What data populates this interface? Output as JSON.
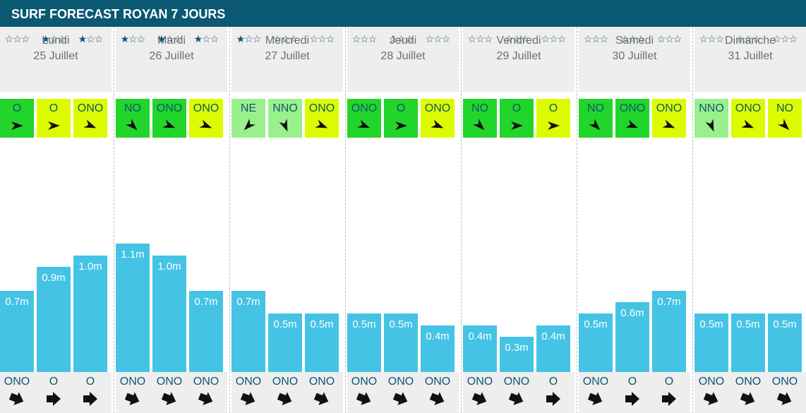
{
  "title": "SURF FORECAST ROYAN 7 JOURS",
  "colors": {
    "header_bg": "#0b5872",
    "wave_bar": "#45c3e4",
    "wind_green": "#22d52a",
    "wind_lightgreen": "#99f08d",
    "wind_yellow": "#dcfb00",
    "text_dark": "#0b5872",
    "panel_gray": "#eeeeee"
  },
  "days": [
    {
      "name": "Lundi",
      "date": "25 Juillet",
      "slots": [
        {
          "stars": 0,
          "wind": {
            "dir": "O",
            "angle": 90,
            "color": "green"
          },
          "height": 0.7,
          "height_label": "0.7m",
          "swell": {
            "dir": "ONO",
            "angle": 112
          }
        },
        {
          "stars": 1,
          "wind": {
            "dir": "O",
            "angle": 90,
            "color": "yellow"
          },
          "height": 0.9,
          "height_label": "0.9m",
          "swell": {
            "dir": "O",
            "angle": 90
          }
        },
        {
          "stars": 1,
          "wind": {
            "dir": "ONO",
            "angle": 112,
            "color": "yellow"
          },
          "height": 1.0,
          "height_label": "1.0m",
          "swell": {
            "dir": "O",
            "angle": 90
          }
        }
      ]
    },
    {
      "name": "Mardi",
      "date": "26 Juillet",
      "slots": [
        {
          "stars": 1,
          "wind": {
            "dir": "NO",
            "angle": 135,
            "color": "green"
          },
          "height": 1.1,
          "height_label": "1.1m",
          "swell": {
            "dir": "ONO",
            "angle": 112
          }
        },
        {
          "stars": 1,
          "wind": {
            "dir": "ONO",
            "angle": 112,
            "color": "green"
          },
          "height": 1.0,
          "height_label": "1.0m",
          "swell": {
            "dir": "ONO",
            "angle": 112
          }
        },
        {
          "stars": 1,
          "wind": {
            "dir": "ONO",
            "angle": 112,
            "color": "yellow"
          },
          "height": 0.7,
          "height_label": "0.7m",
          "swell": {
            "dir": "ONO",
            "angle": 112
          }
        }
      ]
    },
    {
      "name": "Mercredi",
      "date": "27 Juillet",
      "slots": [
        {
          "stars": 1,
          "wind": {
            "dir": "NE",
            "angle": 225,
            "color": "lightgreen"
          },
          "height": 0.7,
          "height_label": "0.7m",
          "swell": {
            "dir": "ONO",
            "angle": 112
          }
        },
        {
          "stars": 0,
          "wind": {
            "dir": "NNO",
            "angle": 158,
            "color": "lightgreen"
          },
          "height": 0.5,
          "height_label": "0.5m",
          "swell": {
            "dir": "ONO",
            "angle": 112
          }
        },
        {
          "stars": 0,
          "wind": {
            "dir": "ONO",
            "angle": 112,
            "color": "yellow"
          },
          "height": 0.5,
          "height_label": "0.5m",
          "swell": {
            "dir": "ONO",
            "angle": 112
          }
        }
      ]
    },
    {
      "name": "Jeudi",
      "date": "28 Juillet",
      "slots": [
        {
          "stars": 0,
          "wind": {
            "dir": "ONO",
            "angle": 112,
            "color": "green"
          },
          "height": 0.5,
          "height_label": "0.5m",
          "swell": {
            "dir": "ONO",
            "angle": 112
          }
        },
        {
          "stars": 0,
          "wind": {
            "dir": "O",
            "angle": 90,
            "color": "green"
          },
          "height": 0.5,
          "height_label": "0.5m",
          "swell": {
            "dir": "ONO",
            "angle": 112
          }
        },
        {
          "stars": 0,
          "wind": {
            "dir": "ONO",
            "angle": 112,
            "color": "yellow"
          },
          "height": 0.4,
          "height_label": "0.4m",
          "swell": {
            "dir": "ONO",
            "angle": 112
          }
        }
      ]
    },
    {
      "name": "Vendredi",
      "date": "29 Juillet",
      "slots": [
        {
          "stars": 0,
          "wind": {
            "dir": "NO",
            "angle": 135,
            "color": "green"
          },
          "height": 0.4,
          "height_label": "0.4m",
          "swell": {
            "dir": "ONO",
            "angle": 112
          }
        },
        {
          "stars": 0,
          "wind": {
            "dir": "O",
            "angle": 90,
            "color": "green"
          },
          "height": 0.3,
          "height_label": "0.3m",
          "swell": {
            "dir": "ONO",
            "angle": 112
          }
        },
        {
          "stars": 0,
          "wind": {
            "dir": "O",
            "angle": 90,
            "color": "yellow"
          },
          "height": 0.4,
          "height_label": "0.4m",
          "swell": {
            "dir": "O",
            "angle": 90
          }
        }
      ]
    },
    {
      "name": "Samedi",
      "date": "30 Juillet",
      "slots": [
        {
          "stars": 0,
          "wind": {
            "dir": "NO",
            "angle": 135,
            "color": "green"
          },
          "height": 0.5,
          "height_label": "0.5m",
          "swell": {
            "dir": "ONO",
            "angle": 112
          }
        },
        {
          "stars": 0,
          "wind": {
            "dir": "ONO",
            "angle": 112,
            "color": "green"
          },
          "height": 0.6,
          "height_label": "0.6m",
          "swell": {
            "dir": "O",
            "angle": 90
          }
        },
        {
          "stars": 0,
          "wind": {
            "dir": "ONO",
            "angle": 112,
            "color": "yellow"
          },
          "height": 0.7,
          "height_label": "0.7m",
          "swell": {
            "dir": "O",
            "angle": 90
          }
        }
      ]
    },
    {
      "name": "Dimanche",
      "date": "31 Juillet",
      "slots": [
        {
          "stars": 0,
          "wind": {
            "dir": "NNO",
            "angle": 158,
            "color": "lightgreen"
          },
          "height": 0.5,
          "height_label": "0.5m",
          "swell": {
            "dir": "ONO",
            "angle": 112
          }
        },
        {
          "stars": 0,
          "wind": {
            "dir": "ONO",
            "angle": 112,
            "color": "yellow"
          },
          "height": 0.5,
          "height_label": "0.5m",
          "swell": {
            "dir": "ONO",
            "angle": 112
          }
        },
        {
          "stars": 0,
          "wind": {
            "dir": "NO",
            "angle": 135,
            "color": "yellow"
          },
          "height": 0.5,
          "height_label": "0.5m",
          "swell": {
            "dir": "ONO",
            "angle": 112
          }
        }
      ]
    }
  ]
}
